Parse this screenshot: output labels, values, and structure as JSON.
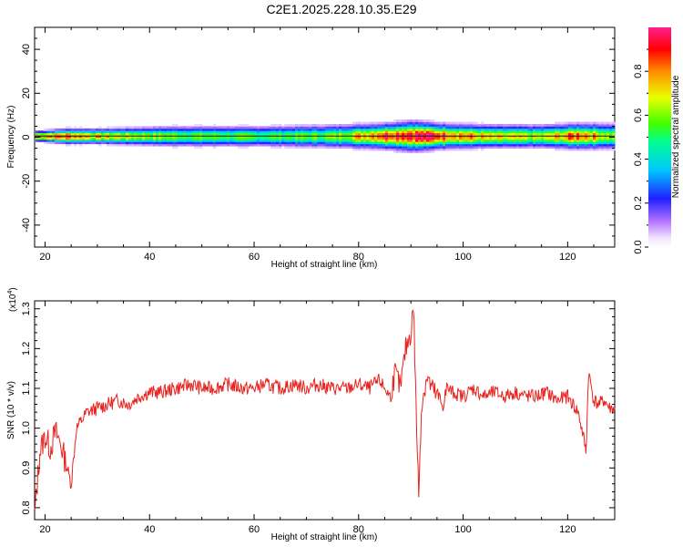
{
  "title": "C2E1.2025.228.10.35.E29",
  "chart_data": [
    {
      "type": "heatmap",
      "xlabel": "Height of straight line (km)",
      "ylabel": "Frequency (Hz)",
      "xlim": [
        18,
        129
      ],
      "ylim": [
        -50,
        50
      ],
      "xticks": [
        20,
        40,
        60,
        80,
        100,
        120
      ],
      "yticks": [
        -40,
        -20,
        0,
        20,
        40
      ],
      "colorbar": {
        "label": "Normalized spectral amplitude",
        "range": [
          0,
          1
        ],
        "ticks": [
          "0.0",
          "0.2",
          "0.4",
          "0.6",
          "0.8"
        ],
        "tick_values": [
          0,
          0.2,
          0.4,
          0.6,
          0.8
        ]
      },
      "band": {
        "center_hz": 0.5,
        "profile": [
          {
            "x": 18,
            "halfwidth_hz": 2,
            "peak": 0.85
          },
          {
            "x": 24,
            "halfwidth_hz": 3,
            "peak": 0.9
          },
          {
            "x": 30,
            "halfwidth_hz": 3,
            "peak": 0.75
          },
          {
            "x": 45,
            "halfwidth_hz": 4,
            "peak": 0.6
          },
          {
            "x": 60,
            "halfwidth_hz": 4,
            "peak": 0.55
          },
          {
            "x": 75,
            "halfwidth_hz": 4.5,
            "peak": 0.6
          },
          {
            "x": 85,
            "halfwidth_hz": 5,
            "peak": 0.95
          },
          {
            "x": 90,
            "halfwidth_hz": 6,
            "peak": 1.0
          },
          {
            "x": 95,
            "halfwidth_hz": 5,
            "peak": 0.95
          },
          {
            "x": 105,
            "halfwidth_hz": 4.5,
            "peak": 0.7
          },
          {
            "x": 115,
            "halfwidth_hz": 4.5,
            "peak": 0.65
          },
          {
            "x": 122,
            "halfwidth_hz": 5,
            "peak": 0.9
          },
          {
            "x": 129,
            "halfwidth_hz": 5,
            "peak": 0.6
          }
        ]
      }
    },
    {
      "type": "line",
      "xlabel": "Height of straight line (km)",
      "ylabel": "SNR (10 * v/v)",
      "y_multiplier": "(x10",
      "y_multiplier_exp": "4",
      "y_multiplier_close": ")",
      "xlim": [
        18,
        129
      ],
      "ylim": [
        0.77,
        1.32
      ],
      "xticks": [
        20,
        40,
        60,
        80,
        100,
        120
      ],
      "yticks": [
        "0.8",
        "0.9",
        "1.0",
        "1.1",
        "1.2",
        "1.3"
      ],
      "ytick_values": [
        0.8,
        0.9,
        1.0,
        1.1,
        1.2,
        1.3
      ],
      "color": "#e8231f",
      "x": [
        18,
        18.5,
        19,
        20,
        21,
        22,
        23,
        24,
        25,
        26,
        27,
        28,
        30,
        32,
        34,
        36,
        38,
        40,
        42,
        45,
        48,
        50,
        52,
        55,
        58,
        60,
        62,
        65,
        68,
        70,
        72,
        75,
        78,
        80,
        82,
        84,
        86,
        87,
        88,
        89,
        90,
        90.5,
        91,
        91.5,
        92,
        93,
        94,
        95,
        96,
        97,
        98,
        100,
        102,
        104,
        106,
        108,
        110,
        112,
        114,
        116,
        118,
        120,
        121,
        122,
        123,
        123.5,
        124,
        125,
        126,
        127,
        128,
        129
      ],
      "y": [
        0.78,
        0.86,
        0.94,
        0.98,
        0.95,
        0.99,
        0.96,
        0.91,
        0.86,
        1.0,
        1.02,
        1.04,
        1.05,
        1.06,
        1.07,
        1.06,
        1.08,
        1.09,
        1.09,
        1.1,
        1.11,
        1.1,
        1.1,
        1.11,
        1.1,
        1.1,
        1.11,
        1.1,
        1.11,
        1.1,
        1.11,
        1.1,
        1.1,
        1.11,
        1.1,
        1.12,
        1.08,
        1.14,
        1.1,
        1.2,
        1.24,
        1.31,
        1.05,
        0.83,
        1.05,
        1.13,
        1.1,
        1.08,
        1.06,
        1.1,
        1.09,
        1.08,
        1.1,
        1.08,
        1.09,
        1.08,
        1.09,
        1.08,
        1.08,
        1.09,
        1.07,
        1.08,
        1.06,
        1.04,
        0.98,
        0.94,
        1.14,
        1.07,
        1.06,
        1.07,
        1.05,
        1.05
      ]
    }
  ]
}
